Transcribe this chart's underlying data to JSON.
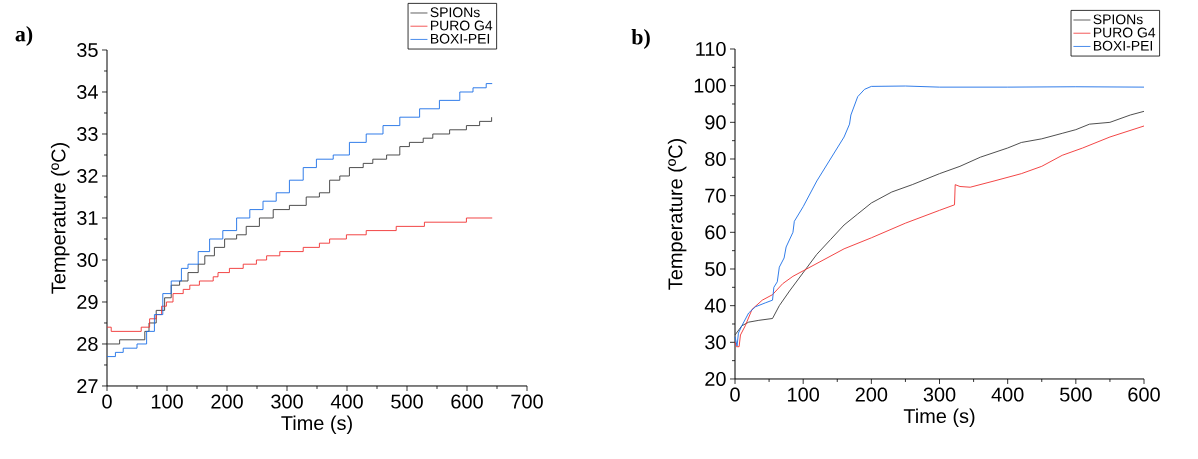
{
  "chart_data": [
    {
      "type": "step",
      "title": "a)",
      "xlabel": "Time (s)",
      "ylabel": "Temperature (ºC)",
      "xlim": [
        0,
        700
      ],
      "ylim": [
        27,
        35
      ],
      "xticks": [
        0,
        100,
        200,
        300,
        400,
        500,
        600,
        700
      ],
      "yticks": [
        27,
        28,
        29,
        30,
        31,
        32,
        33,
        34,
        35
      ],
      "legend": "top right",
      "series": [
        {
          "name": "SPIONs",
          "color": "#3a3a3a",
          "x": [
            0,
            21,
            57,
            63,
            70,
            82,
            96,
            107,
            121,
            135,
            152,
            163,
            179,
            196,
            216,
            232,
            254,
            277,
            304,
            332,
            354,
            371,
            388,
            404,
            427,
            443,
            466,
            488,
            504,
            527,
            543,
            571,
            599,
            621,
            641
          ],
          "values": [
            28.0,
            28.1,
            28.1,
            28.3,
            28.5,
            28.8,
            29.1,
            29.4,
            29.5,
            29.7,
            29.9,
            30.1,
            30.3,
            30.5,
            30.6,
            30.8,
            31.0,
            31.2,
            31.3,
            31.5,
            31.6,
            31.9,
            32.0,
            32.2,
            32.3,
            32.4,
            32.5,
            32.7,
            32.8,
            32.9,
            33.0,
            33.1,
            33.2,
            33.3,
            33.4
          ]
        },
        {
          "name": "PURO G4",
          "color": "#f03030",
          "x": [
            0,
            7,
            57,
            71,
            82,
            91,
            99,
            110,
            127,
            138,
            154,
            177,
            185,
            204,
            227,
            249,
            266,
            288,
            327,
            354,
            371,
            399,
            432,
            482,
            529,
            599,
            642
          ],
          "values": [
            28.4,
            28.3,
            28.4,
            28.6,
            28.7,
            28.9,
            29.0,
            29.2,
            29.3,
            29.4,
            29.5,
            29.6,
            29.7,
            29.8,
            29.9,
            30.0,
            30.1,
            30.2,
            30.3,
            30.4,
            30.5,
            30.6,
            30.7,
            30.8,
            30.9,
            31.0,
            31.0
          ]
        },
        {
          "name": "BOXI-PEI",
          "color": "#1a6ee6",
          "x": [
            0,
            14,
            27,
            50,
            66,
            79,
            93,
            107,
            124,
            135,
            152,
            171,
            193,
            216,
            238,
            260,
            282,
            304,
            327,
            349,
            377,
            404,
            432,
            460,
            488,
            521,
            554,
            588,
            610,
            632,
            642
          ],
          "values": [
            27.7,
            27.8,
            27.9,
            28.0,
            28.3,
            28.7,
            29.2,
            29.5,
            29.8,
            29.9,
            30.2,
            30.5,
            30.7,
            31.0,
            31.2,
            31.4,
            31.6,
            31.9,
            32.2,
            32.4,
            32.5,
            32.8,
            33.0,
            33.2,
            33.4,
            33.6,
            33.8,
            34.0,
            34.1,
            34.2,
            34.2
          ]
        }
      ]
    },
    {
      "type": "line",
      "title": "b)",
      "xlabel": "Time (s)",
      "ylabel": "Temperature (ºC)",
      "xlim": [
        0,
        600
      ],
      "ylim": [
        20,
        110
      ],
      "xticks": [
        0,
        100,
        200,
        300,
        400,
        500,
        600
      ],
      "yticks": [
        20,
        30,
        40,
        50,
        60,
        70,
        80,
        90,
        100,
        110
      ],
      "legend": "top right",
      "series": [
        {
          "name": "SPIONs",
          "color": "#3a3a3a",
          "x": [
            0,
            10,
            20,
            35,
            55,
            65,
            80,
            100,
            120,
            140,
            160,
            180,
            200,
            230,
            260,
            300,
            330,
            360,
            400,
            420,
            450,
            480,
            500,
            520,
            550,
            580,
            600
          ],
          "values": [
            32,
            34.5,
            35.5,
            36,
            36.5,
            40,
            44,
            49,
            54,
            58,
            62,
            65,
            68,
            71,
            73,
            76,
            78,
            80.5,
            83,
            84.5,
            85.5,
            87,
            88,
            89.5,
            90,
            92,
            93
          ]
        },
        {
          "name": "PURO G4",
          "color": "#f03030",
          "x": [
            0,
            2,
            6,
            8,
            15,
            25,
            40,
            55,
            70,
            85,
            100,
            130,
            160,
            200,
            250,
            300,
            322,
            323,
            330,
            345,
            380,
            420,
            450,
            480,
            510,
            550,
            600
          ],
          "values": [
            30,
            28.8,
            28.8,
            32,
            34.5,
            39,
            41.5,
            43,
            46,
            48,
            49.5,
            52.5,
            55.5,
            58.5,
            62.5,
            66,
            67.5,
            73,
            72.5,
            72.3,
            74,
            76,
            78,
            81,
            83,
            86,
            89
          ]
        },
        {
          "name": "BOXI-PEI",
          "color": "#1a6ee6",
          "x": [
            0,
            3,
            5,
            10,
            20,
            30,
            45,
            55,
            57,
            62,
            65,
            72,
            75,
            85,
            87,
            100,
            120,
            140,
            160,
            168,
            170,
            180,
            190,
            200,
            250,
            300,
            400,
            500,
            600
          ],
          "values": [
            31.5,
            29,
            32.5,
            34.5,
            38,
            39.7,
            40.8,
            41.5,
            45,
            46.5,
            50.5,
            53,
            56,
            60,
            63,
            67,
            74,
            80,
            86,
            89.5,
            92,
            97,
            99,
            99.8,
            99.9,
            99.6,
            99.6,
            99.7,
            99.6
          ]
        }
      ]
    }
  ]
}
